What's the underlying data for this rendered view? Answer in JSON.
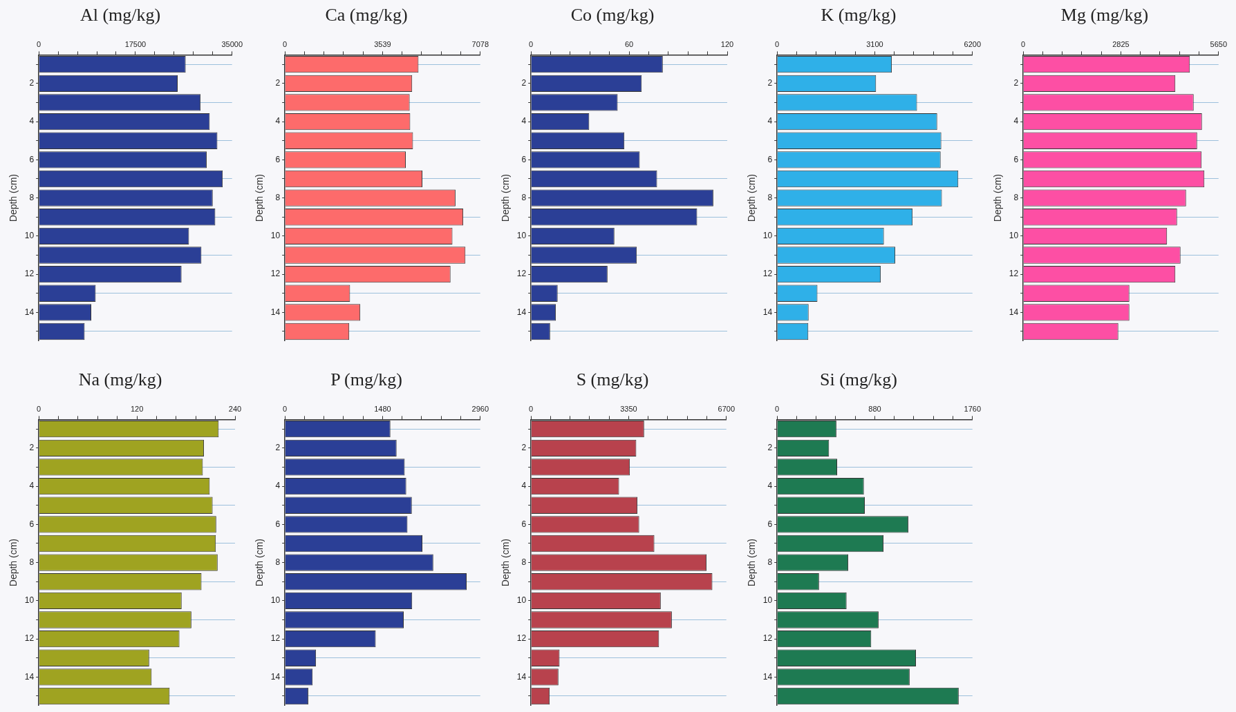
{
  "chart_data": [
    {
      "type": "bar",
      "orientation": "horizontal",
      "title": "Al (mg/kg)",
      "ylabel": "Depth (cm)",
      "categories": [
        null,
        "2",
        null,
        "4",
        null,
        "6",
        null,
        "8",
        null,
        "10",
        null,
        "12",
        null,
        "14",
        null
      ],
      "values": [
        26600,
        25150,
        29300,
        30950,
        32340,
        30400,
        33300,
        31500,
        31960,
        27200,
        29450,
        25850,
        10300,
        9500,
        8300
      ],
      "color": "#2b3f96",
      "xlim": [
        0,
        35000
      ],
      "xticks": [
        0,
        {
          "value": 3500,
          "label": null
        },
        {
          "value": 7000,
          "label": null
        },
        {
          "value": 10500,
          "label": null
        },
        {
          "value": 14000,
          "label": null
        },
        17500,
        {
          "value": 21000,
          "label": null
        },
        {
          "value": 24500,
          "label": null
        },
        {
          "value": 28000,
          "label": null
        },
        {
          "value": 31500,
          "label": null
        },
        35000
      ],
      "grid": "y"
    },
    {
      "type": "bar",
      "orientation": "horizontal",
      "title": "Ca (mg/kg)",
      "ylabel": "Depth (cm)",
      "categories": [
        null,
        "2",
        null,
        "4",
        null,
        "6",
        null,
        "8",
        null,
        "10",
        null,
        "12",
        null,
        "14",
        null
      ],
      "values": [
        4840,
        4610,
        4520,
        4540,
        4640,
        4380,
        4980,
        6180,
        6460,
        6070,
        6540,
        6000,
        2360,
        2730,
        2330
      ],
      "color": "#fd6b6b",
      "xlim": [
        0,
        7078
      ],
      "xticks": [
        0,
        {
          "value": 707.8,
          "label": null
        },
        {
          "value": 1415.6,
          "label": null
        },
        {
          "value": 2123.4,
          "label": null
        },
        {
          "value": 2831.2,
          "label": null
        },
        3539,
        {
          "value": 4246.8,
          "label": null
        },
        {
          "value": 4954.6,
          "label": null
        },
        {
          "value": 5662.4,
          "label": null
        },
        {
          "value": 6370.2,
          "label": null
        },
        7078
      ],
      "grid": "y"
    },
    {
      "type": "bar",
      "orientation": "horizontal",
      "title": "Co (mg/kg)",
      "ylabel": "Depth (cm)",
      "categories": [
        null,
        "2",
        null,
        "4",
        null,
        "6",
        null,
        "8",
        null,
        "10",
        null,
        "12",
        null,
        "14",
        null
      ],
      "values": [
        80.6,
        67.7,
        53,
        35.6,
        57.1,
        66.5,
        77.1,
        111.5,
        101.6,
        51,
        64.7,
        46.8,
        16.3,
        15.2,
        11.7
      ],
      "color": "#2b3f96",
      "xlim": [
        0,
        120
      ],
      "xticks": [
        0,
        {
          "value": 12,
          "label": null
        },
        {
          "value": 24,
          "label": null
        },
        {
          "value": 36,
          "label": null
        },
        {
          "value": 48,
          "label": null
        },
        60,
        {
          "value": 72,
          "label": null
        },
        {
          "value": 84,
          "label": null
        },
        {
          "value": 96,
          "label": null
        },
        {
          "value": 108,
          "label": null
        },
        120
      ],
      "grid": "y"
    },
    {
      "type": "bar",
      "orientation": "horizontal",
      "title": "K (mg/kg)",
      "ylabel": "Depth (cm)",
      "categories": [
        null,
        "2",
        null,
        "4",
        null,
        "6",
        null,
        "8",
        null,
        "10",
        null,
        "12",
        null,
        "14",
        null
      ],
      "values": [
        3640,
        3140,
        4440,
        5080,
        5210,
        5190,
        5750,
        5230,
        4300,
        3390,
        3750,
        3290,
        1280,
        1000,
        990
      ],
      "color": "#2fb0e8",
      "xlim": [
        0,
        6200
      ],
      "xticks": [
        0,
        {
          "value": 620,
          "label": null
        },
        {
          "value": 1240,
          "label": null
        },
        {
          "value": 1860,
          "label": null
        },
        {
          "value": 2480,
          "label": null
        },
        3100,
        {
          "value": 3720,
          "label": null
        },
        {
          "value": 4340,
          "label": null
        },
        {
          "value": 4960,
          "label": null
        },
        {
          "value": 5580,
          "label": null
        },
        6200
      ],
      "grid": "y"
    },
    {
      "type": "bar",
      "orientation": "horizontal",
      "title": "Mg (mg/kg)",
      "ylabel": "Depth (cm)",
      "categories": [
        null,
        "2",
        null,
        "4",
        null,
        "6",
        null,
        "8",
        null,
        "10",
        null,
        "12",
        null,
        "14",
        null
      ],
      "values": [
        4820,
        4400,
        4930,
        5170,
        5030,
        5160,
        5240,
        4710,
        4450,
        4160,
        4550,
        4400,
        3070,
        3070,
        2750
      ],
      "color": "#fd4fa4",
      "xlim": [
        0,
        5650
      ],
      "xticks": [
        0,
        {
          "value": 565,
          "label": null
        },
        {
          "value": 1130,
          "label": null
        },
        {
          "value": 1695,
          "label": null
        },
        {
          "value": 2260,
          "label": null
        },
        2825,
        {
          "value": 3390,
          "label": null
        },
        {
          "value": 3955,
          "label": null
        },
        {
          "value": 4520,
          "label": null
        },
        {
          "value": 5085,
          "label": null
        },
        5650
      ],
      "grid": "y"
    },
    {
      "type": "bar",
      "orientation": "horizontal",
      "title": "Na (mg/kg)",
      "ylabel": "Depth (cm)",
      "categories": [
        null,
        "2",
        null,
        "4",
        null,
        "6",
        null,
        "8",
        null,
        "10",
        null,
        "12",
        null,
        "14",
        null
      ],
      "values": [
        220,
        202,
        200.6,
        209,
        212.6,
        217,
        216.5,
        218.7,
        199,
        174.7,
        186.6,
        172,
        135,
        138,
        160
      ],
      "color": "#9fa321",
      "xlim": [
        0,
        240
      ],
      "xticks": [
        0,
        {
          "value": 24,
          "label": null
        },
        {
          "value": 48,
          "label": null
        },
        {
          "value": 72,
          "label": null
        },
        {
          "value": 96,
          "label": null
        },
        120,
        {
          "value": 144,
          "label": null
        },
        {
          "value": 168,
          "label": null
        },
        {
          "value": 192,
          "label": null
        },
        {
          "value": 216,
          "label": null
        },
        240
      ],
      "grid": "y"
    },
    {
      "type": "bar",
      "orientation": "horizontal",
      "title": "P (mg/kg)",
      "ylabel": "Depth (cm)",
      "categories": [
        null,
        "2",
        null,
        "4",
        null,
        "6",
        null,
        "8",
        null,
        "10",
        null,
        "12",
        null,
        "14",
        null
      ],
      "values": [
        1598,
        1692,
        1815,
        1838,
        1923,
        1857,
        2083,
        2248,
        2753,
        1928,
        1800,
        1376,
        471,
        420,
        354
      ],
      "color": "#2b3f96",
      "xlim": [
        0,
        2960
      ],
      "xticks": [
        0,
        {
          "value": 296,
          "label": null
        },
        {
          "value": 592,
          "label": null
        },
        {
          "value": 888,
          "label": null
        },
        {
          "value": 1184,
          "label": null
        },
        1480,
        {
          "value": 1776,
          "label": null
        },
        {
          "value": 2072,
          "label": null
        },
        {
          "value": 2368,
          "label": null
        },
        {
          "value": 2664,
          "label": null
        },
        2960
      ],
      "grid": "y"
    },
    {
      "type": "bar",
      "orientation": "horizontal",
      "title": "S (mg/kg)",
      "ylabel": "Depth (cm)",
      "categories": [
        null,
        "2",
        null,
        "4",
        null,
        "6",
        null,
        "8",
        null,
        "10",
        null,
        "12",
        null,
        "14",
        null
      ],
      "values": [
        3880,
        3610,
        3390,
        3020,
        3650,
        3710,
        4230,
        6020,
        6220,
        4450,
        4830,
        4390,
        980,
        940,
        640
      ],
      "color": "#b8424d",
      "xlim": [
        0,
        6700
      ],
      "xticks": [
        0,
        {
          "value": 670,
          "label": null
        },
        {
          "value": 1340,
          "label": null
        },
        {
          "value": 2010,
          "label": null
        },
        {
          "value": 2680,
          "label": null
        },
        3350,
        {
          "value": 4020,
          "label": null
        },
        {
          "value": 4690,
          "label": null
        },
        {
          "value": 5360,
          "label": null
        },
        {
          "value": 6030,
          "label": null
        },
        6700
      ],
      "grid": "y"
    },
    {
      "type": "bar",
      "orientation": "horizontal",
      "title": "Si (mg/kg)",
      "ylabel": "Depth (cm)",
      "categories": [
        null,
        "2",
        null,
        "4",
        null,
        "6",
        null,
        "8",
        null,
        "10",
        null,
        "12",
        null,
        "14",
        null
      ],
      "values": [
        534,
        468,
        541,
        782,
        790,
        1182,
        958,
        641,
        378,
        626,
        914,
        848,
        1251,
        1194,
        1636
      ],
      "color": "#1e7a52",
      "xlim": [
        0,
        1760
      ],
      "xticks": [
        0,
        {
          "value": 176,
          "label": null
        },
        {
          "value": 352,
          "label": null
        },
        {
          "value": 528,
          "label": null
        },
        {
          "value": 704,
          "label": null
        },
        880,
        {
          "value": 1056,
          "label": null
        },
        {
          "value": 1232,
          "label": null
        },
        {
          "value": 1408,
          "label": null
        },
        {
          "value": 1584,
          "label": null
        },
        1760
      ],
      "grid": "y"
    }
  ]
}
